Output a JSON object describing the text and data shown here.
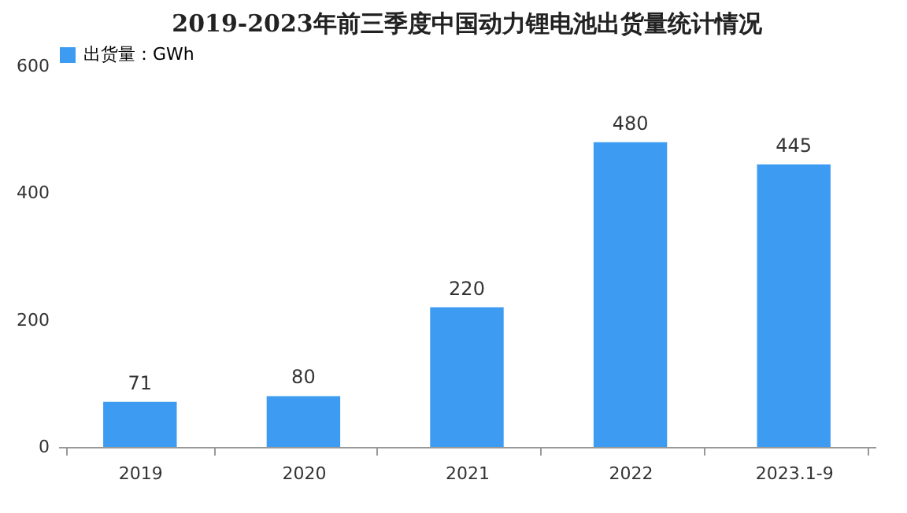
{
  "chart_data": {
    "type": "bar",
    "title": "2019-2023年前三季度中国动力锂电池出货量统计情况",
    "categories": [
      "2019",
      "2020",
      "2021",
      "2022",
      "2023.1-9"
    ],
    "series": [
      {
        "name": "出货量：GWh",
        "color": "#3d9cf2",
        "values": [
          71,
          80,
          220,
          480,
          445
        ]
      }
    ],
    "ylim": [
      0,
      600
    ],
    "yticks": [
      0,
      200,
      400,
      600
    ],
    "grid": false,
    "legend": "top",
    "data_labels": true
  }
}
